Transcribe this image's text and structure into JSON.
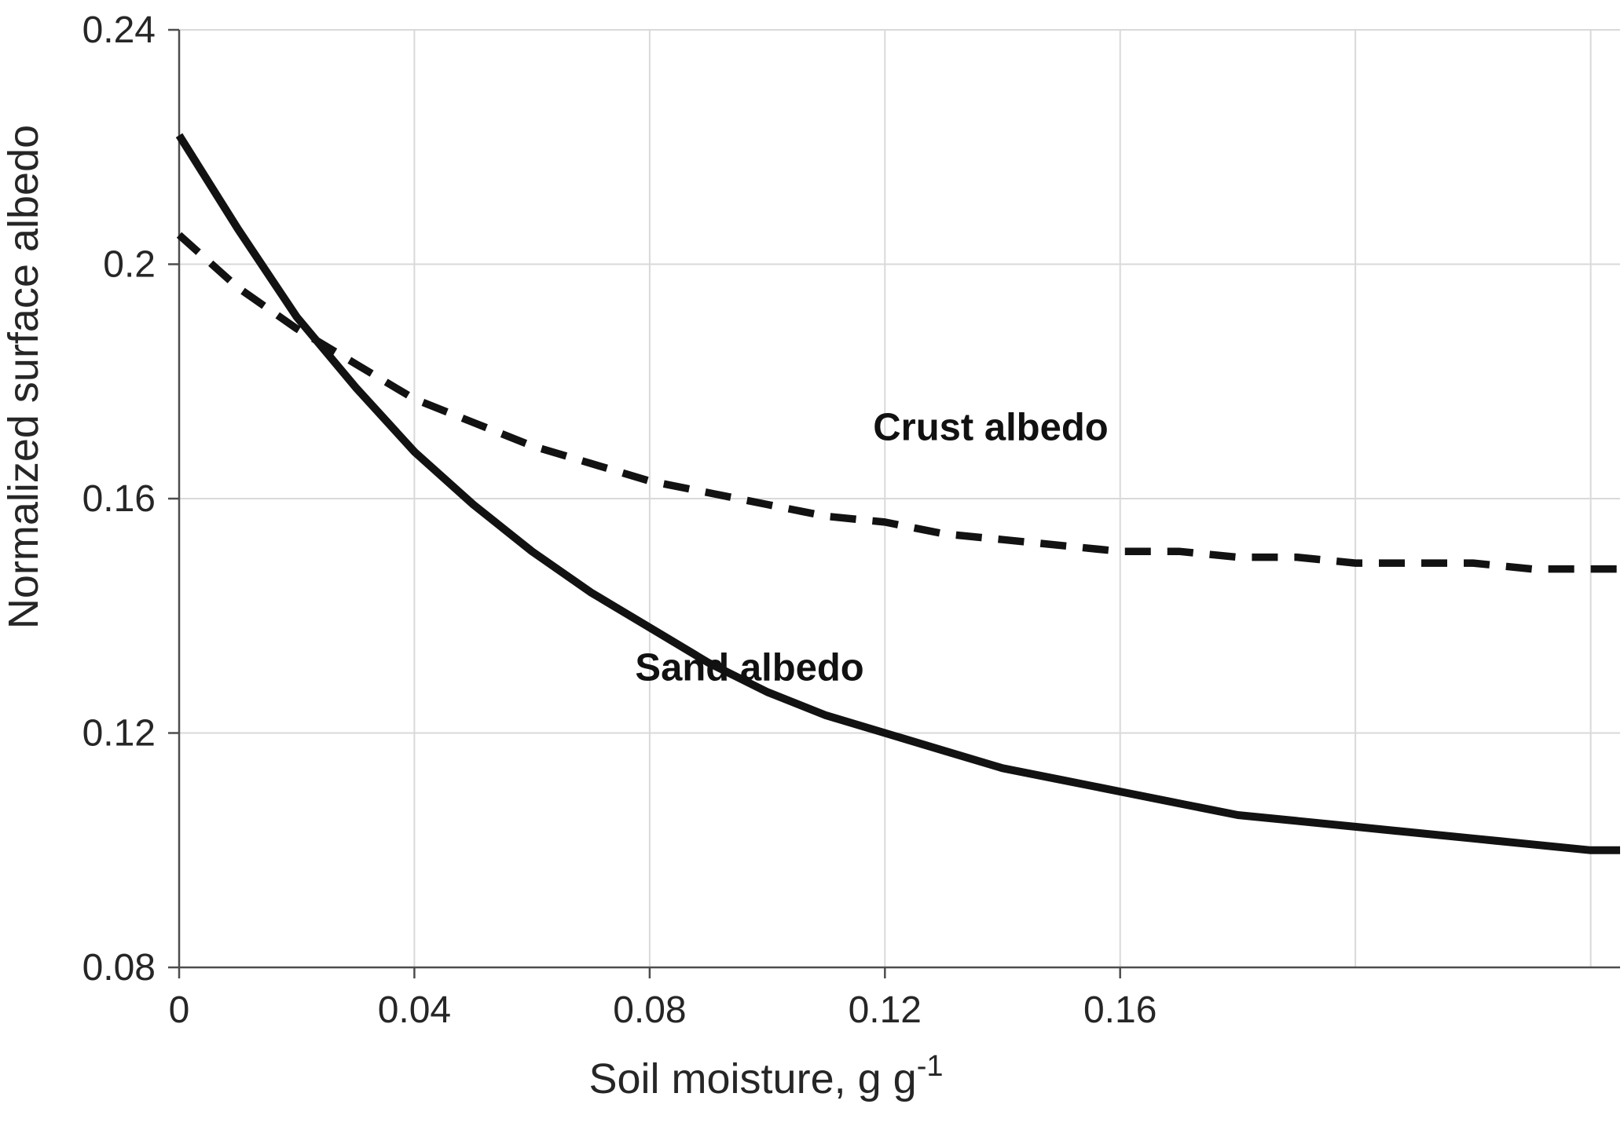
{
  "figure": {
    "background": "#ffffff"
  },
  "chart_data": {
    "type": "line",
    "title": "",
    "xlabel_base": "Soil moisture, g g",
    "xlabel_sup": "-1",
    "ylabel": "Normalized surface albedo",
    "xlim": [
      0,
      0.245
    ],
    "ylim": [
      0.08,
      0.24
    ],
    "grid_on": true,
    "grid_color": "#d9d9d9",
    "axis_color": "#4d4d4d",
    "line_color": "#121212",
    "text_color": "#262626",
    "x_ticks_labeled": [
      {
        "value": 0,
        "label": "0"
      },
      {
        "value": 0.04,
        "label": "0.04"
      },
      {
        "value": 0.08,
        "label": "0.08"
      },
      {
        "value": 0.12,
        "label": "0.12"
      },
      {
        "value": 0.16,
        "label": "0.16"
      }
    ],
    "x_gridlines": [
      0.04,
      0.08,
      0.12,
      0.16,
      0.2,
      0.24
    ],
    "y_ticks": [
      {
        "value": 0.08,
        "label": "0.08"
      },
      {
        "value": 0.12,
        "label": "0.12"
      },
      {
        "value": 0.16,
        "label": "0.16"
      },
      {
        "value": 0.2,
        "label": "0.2"
      },
      {
        "value": 0.24,
        "label": "0.24"
      }
    ],
    "y_gridlines": [
      0.12,
      0.16,
      0.2,
      0.24
    ],
    "legend_position": "inline-annotations",
    "series": [
      {
        "name": "Sand albedo",
        "style": "solid",
        "x": [
          0,
          0.01,
          0.02,
          0.03,
          0.04,
          0.05,
          0.06,
          0.07,
          0.08,
          0.09,
          0.1,
          0.11,
          0.12,
          0.13,
          0.14,
          0.15,
          0.16,
          0.17,
          0.18,
          0.19,
          0.2,
          0.21,
          0.22,
          0.23,
          0.24,
          0.245
        ],
        "values": [
          0.222,
          0.206,
          0.191,
          0.179,
          0.168,
          0.159,
          0.151,
          0.144,
          0.138,
          0.132,
          0.127,
          0.123,
          0.12,
          0.117,
          0.114,
          0.112,
          0.11,
          0.108,
          0.106,
          0.105,
          0.104,
          0.103,
          0.102,
          0.101,
          0.1,
          0.1
        ],
        "label_anchor": {
          "x": 0.097,
          "y": 0.129
        }
      },
      {
        "name": "Crust albedo",
        "style": "dashed",
        "x": [
          0,
          0.01,
          0.02,
          0.03,
          0.04,
          0.05,
          0.06,
          0.07,
          0.08,
          0.09,
          0.1,
          0.11,
          0.12,
          0.13,
          0.14,
          0.15,
          0.16,
          0.17,
          0.18,
          0.19,
          0.2,
          0.21,
          0.22,
          0.23,
          0.24,
          0.245
        ],
        "values": [
          0.205,
          0.196,
          0.189,
          0.183,
          0.177,
          0.173,
          0.169,
          0.166,
          0.163,
          0.161,
          0.159,
          0.157,
          0.156,
          0.154,
          0.153,
          0.152,
          0.151,
          0.151,
          0.15,
          0.15,
          0.149,
          0.149,
          0.149,
          0.148,
          0.148,
          0.148
        ],
        "label_anchor": {
          "x": 0.138,
          "y": 0.17
        }
      }
    ],
    "annotations": [
      "Sand albedo",
      "Crust albedo"
    ]
  }
}
